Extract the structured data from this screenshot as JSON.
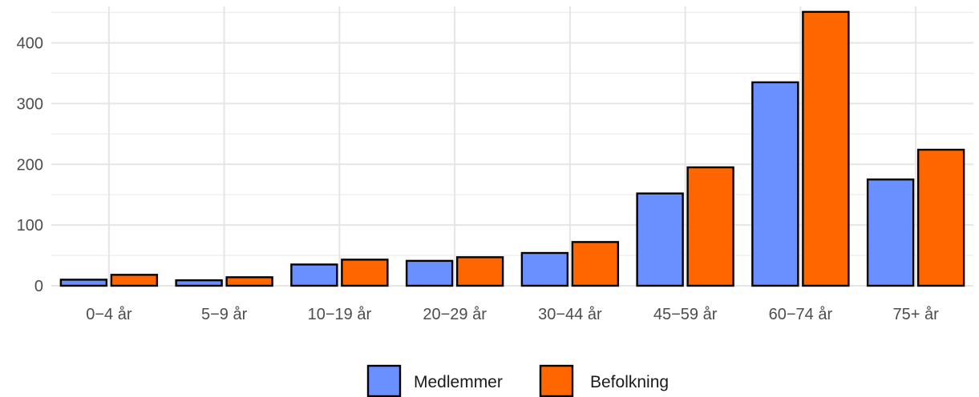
{
  "chart_data": {
    "type": "bar",
    "categories": [
      "0−4 år",
      "5−9 år",
      "10−19 år",
      "20−29 år",
      "30−44 år",
      "45−59 år",
      "60−74 år",
      "75+ år"
    ],
    "series": [
      {
        "name": "Medlemmer",
        "color": "#6a8fff",
        "values": [
          10,
          9,
          35,
          41,
          54,
          152,
          335,
          175
        ]
      },
      {
        "name": "Befolkning",
        "color": "#ff6600",
        "values": [
          18,
          14,
          43,
          47,
          72,
          195,
          451,
          224
        ]
      }
    ],
    "yticks": [
      0,
      100,
      200,
      300,
      400
    ],
    "ylim": [
      0,
      460
    ],
    "grid": true,
    "legend_position": "bottom",
    "title": "",
    "xlabel": "",
    "ylabel": ""
  }
}
